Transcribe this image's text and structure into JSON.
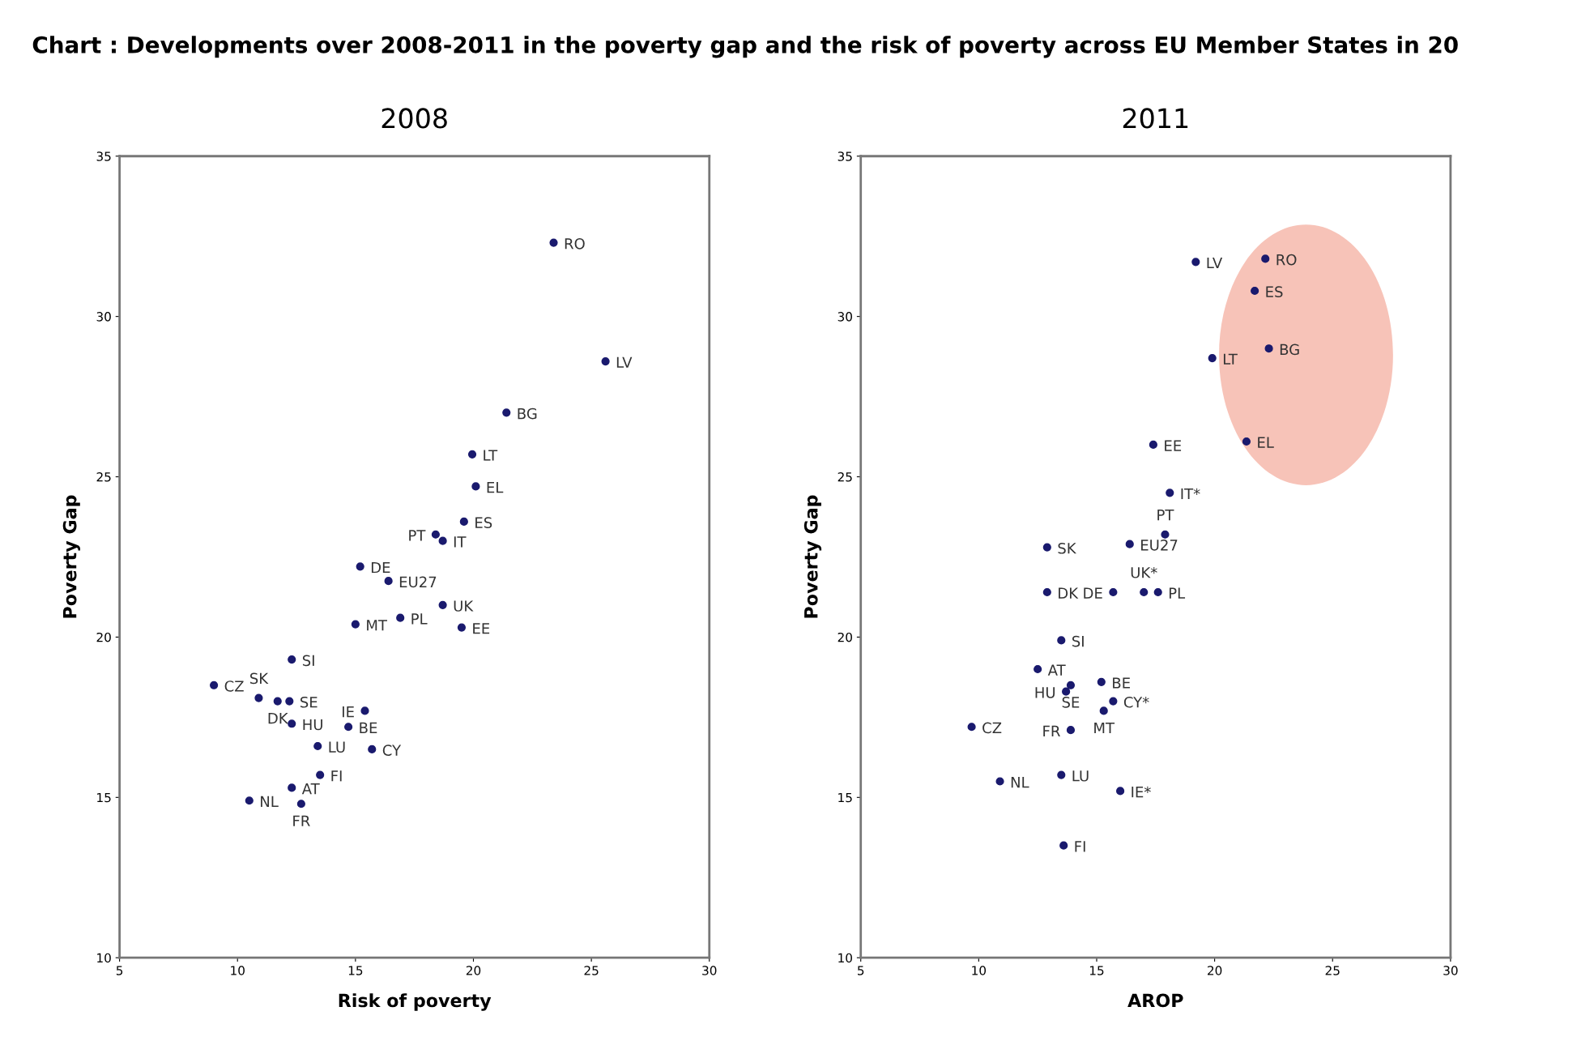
{
  "chart_data": [
    {
      "type": "scatter",
      "title": "2008",
      "xlabel": "Risk of poverty",
      "ylabel": "Poverty Gap",
      "xlim": [
        5,
        30
      ],
      "ylim": [
        10,
        35
      ],
      "xticks": [
        5,
        10,
        15,
        20,
        25,
        30
      ],
      "yticks": [
        10,
        15,
        20,
        25,
        30,
        35
      ],
      "grid": false,
      "marker": "circle",
      "legend": false,
      "series": [
        {
          "color": "#1a1a6e",
          "x": [
            23.4,
            25.6,
            21.4,
            19.95,
            20.1,
            19.6,
            18.4,
            18.7,
            15.2,
            16.4,
            18.7,
            15.0,
            16.9,
            19.5,
            12.3,
            9.0,
            10.9,
            11.7,
            12.2,
            12.3,
            14.7,
            15.4,
            13.4,
            15.7,
            13.5,
            12.3,
            10.5,
            12.7
          ],
          "values": [
            32.3,
            28.6,
            27.0,
            25.7,
            24.7,
            23.6,
            23.2,
            23.0,
            22.2,
            21.75,
            21.0,
            20.4,
            20.6,
            20.3,
            19.3,
            18.5,
            18.1,
            18.0,
            18.0,
            17.3,
            17.2,
            17.7,
            16.6,
            16.5,
            15.7,
            15.3,
            14.9,
            14.8
          ]
        }
      ],
      "annotations": [
        "Chart : Developments over 2008-2011 in the poverty gap and the risk of poverty across EU Member States in 20",
        {
          "text": "RO",
          "x": 23.4,
          "y": 32.3
        },
        {
          "text": "LV",
          "x": 25.6,
          "y": 28.6
        },
        {
          "text": "BG",
          "x": 21.4,
          "y": 27.0
        },
        {
          "text": "LT",
          "x": 19.95,
          "y": 25.7
        },
        {
          "text": "EL",
          "x": 20.1,
          "y": 24.7
        },
        {
          "text": "ES",
          "x": 19.6,
          "y": 23.6
        },
        {
          "text": "PT",
          "x": 18.4,
          "y": 23.2
        },
        {
          "text": "IT",
          "x": 18.7,
          "y": 23.0
        },
        {
          "text": "DE",
          "x": 15.2,
          "y": 22.2
        },
        {
          "text": "EU27",
          "x": 16.4,
          "y": 21.75
        },
        {
          "text": "UK",
          "x": 18.7,
          "y": 21.0
        },
        {
          "text": "MT",
          "x": 15.0,
          "y": 20.4
        },
        {
          "text": "PL",
          "x": 16.9,
          "y": 20.6
        },
        {
          "text": "EE",
          "x": 19.5,
          "y": 20.3
        },
        {
          "text": "SI",
          "x": 12.3,
          "y": 19.3
        },
        {
          "text": "CZ",
          "x": 9.0,
          "y": 18.5
        },
        {
          "text": "SK",
          "x": 10.9,
          "y": 18.1
        },
        {
          "text": "DK",
          "x": 11.7,
          "y": 18.0
        },
        {
          "text": "SE",
          "x": 12.2,
          "y": 18.0
        },
        {
          "text": "HU",
          "x": 12.3,
          "y": 17.3
        },
        {
          "text": "BE",
          "x": 14.7,
          "y": 17.2
        },
        {
          "text": "IE",
          "x": 15.4,
          "y": 17.7
        },
        {
          "text": "LU",
          "x": 13.4,
          "y": 16.6
        },
        {
          "text": "CY",
          "x": 15.7,
          "y": 16.5
        },
        {
          "text": "FI",
          "x": 13.5,
          "y": 15.7
        },
        {
          "text": "AT",
          "x": 12.3,
          "y": 15.3
        },
        {
          "text": "NL",
          "x": 10.5,
          "y": 14.9
        },
        {
          "text": "FR",
          "x": 12.7,
          "y": 14.8
        }
      ]
    },
    {
      "type": "scatter",
      "title": "2011",
      "xlabel": "AROP",
      "ylabel": "Poverty Gap",
      "xlim": [
        5,
        30
      ],
      "ylim": [
        10,
        35
      ],
      "xticks": [
        5,
        10,
        15,
        20,
        25,
        30
      ],
      "yticks": [
        10,
        15,
        20,
        25,
        30,
        35
      ],
      "grid": false,
      "marker": "circle",
      "legend": false,
      "series": [
        {
          "color": "#1a1a6e",
          "x": [
            19.2,
            22.15,
            21.7,
            22.3,
            19.9,
            21.35,
            17.4,
            18.1,
            16.4,
            17.9,
            12.9,
            12.9,
            15.7,
            17.0,
            17.6,
            13.5,
            12.5,
            13.9,
            13.7,
            15.2,
            15.7,
            15.3,
            13.9,
            9.7,
            10.9,
            13.5,
            16.0,
            13.6
          ],
          "values": [
            31.7,
            31.8,
            30.8,
            29.0,
            28.7,
            26.1,
            26.0,
            24.5,
            22.9,
            23.2,
            22.8,
            21.4,
            21.4,
            21.4,
            21.4,
            19.9,
            19.0,
            18.5,
            18.3,
            18.6,
            18.0,
            17.7,
            17.1,
            17.2,
            15.5,
            15.7,
            15.2,
            13.5
          ]
        }
      ],
      "annotations": [
        {
          "text": "LV",
          "x": 19.2,
          "y": 31.7
        },
        {
          "text": "RO",
          "x": 22.15,
          "y": 31.8
        },
        {
          "text": "ES",
          "x": 21.7,
          "y": 30.8
        },
        {
          "text": "BG",
          "x": 22.3,
          "y": 29.0
        },
        {
          "text": "LT",
          "x": 19.9,
          "y": 28.7
        },
        {
          "text": "EL",
          "x": 21.35,
          "y": 26.1
        },
        {
          "text": "EE",
          "x": 17.4,
          "y": 26.0
        },
        {
          "text": "IT*",
          "x": 18.1,
          "y": 24.5
        },
        {
          "text": "EU27",
          "x": 16.4,
          "y": 22.9
        },
        {
          "text": "PT",
          "x": 17.9,
          "y": 23.2
        },
        {
          "text": "SK",
          "x": 12.9,
          "y": 22.8
        },
        {
          "text": "DK",
          "x": 12.9,
          "y": 21.4
        },
        {
          "text": "DE",
          "x": 15.7,
          "y": 21.4
        },
        {
          "text": "UK*",
          "x": 17.0,
          "y": 21.4
        },
        {
          "text": "PL",
          "x": 17.6,
          "y": 21.4
        },
        {
          "text": "SI",
          "x": 13.5,
          "y": 19.9
        },
        {
          "text": "AT",
          "x": 12.5,
          "y": 19.0
        },
        {
          "text": "SE",
          "x": 13.9,
          "y": 18.5
        },
        {
          "text": "HU",
          "x": 13.7,
          "y": 18.3
        },
        {
          "text": "BE",
          "x": 15.2,
          "y": 18.6
        },
        {
          "text": "CY*",
          "x": 15.7,
          "y": 18.0
        },
        {
          "text": "MT",
          "x": 15.3,
          "y": 17.7
        },
        {
          "text": "FR",
          "x": 13.9,
          "y": 17.1
        },
        {
          "text": "CZ",
          "x": 9.7,
          "y": 17.2
        },
        {
          "text": "NL",
          "x": 10.9,
          "y": 15.5
        },
        {
          "text": "LU",
          "x": 13.5,
          "y": 15.7
        },
        {
          "text": "IE*",
          "x": 16.0,
          "y": 15.2
        },
        {
          "text": "FI",
          "x": 13.6,
          "y": 13.5
        }
      ]
    }
  ]
}
